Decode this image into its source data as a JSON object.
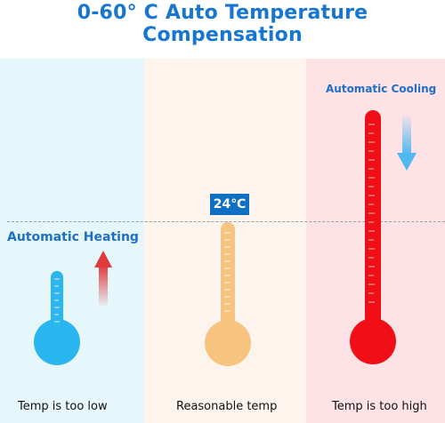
{
  "title": "0-60° C Auto Temperature Compensation",
  "labels": {
    "heating": "Automatic Heating",
    "cooling": "Automatic Cooling",
    "reasonable_temp": "24℃"
  },
  "captions": {
    "low": "Temp is too low",
    "reasonable": "Reasonable temp",
    "high": "Temp is too high"
  },
  "colors": {
    "cold": "#29b6ee",
    "warm": "#f7c47f",
    "hot": "#f10f17",
    "text_blue": "#1676d2",
    "up_arrow": "#e03a3a",
    "down_arrow": "#4fb8ef"
  },
  "icons": {
    "cold_thermometer": "thermometer-cold-icon",
    "warm_thermometer": "thermometer-warm-icon",
    "hot_thermometer": "thermometer-hot-icon",
    "up_arrow": "up-arrow-icon",
    "down_arrow": "down-arrow-icon"
  }
}
